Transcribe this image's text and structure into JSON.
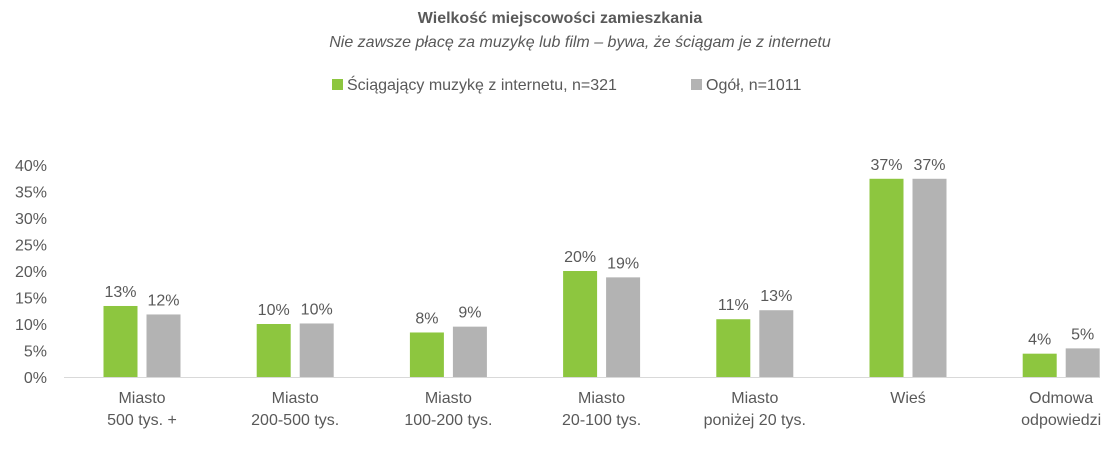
{
  "chart_data": {
    "type": "bar",
    "title": "Wielkość miejscowości zamieszkania",
    "subtitle": "Nie zawsze płacę za muzykę lub film – bywa, że ściągam je z internetu",
    "categories": [
      [
        "Miasto",
        "500 tys. +"
      ],
      [
        "Miasto",
        "200-500 tys."
      ],
      [
        "Miasto",
        "100-200 tys."
      ],
      [
        "Miasto",
        "20-100 tys."
      ],
      [
        "Miasto",
        "poniżej 20 tys."
      ],
      [
        "Wieś"
      ],
      [
        "Odmowa",
        "odpowiedzi"
      ]
    ],
    "series": [
      {
        "name": "Ściągający muzykę z internetu, n=321",
        "color": "#8dc63f",
        "values": [
          13,
          10,
          8,
          20,
          11,
          37,
          4
        ],
        "labels": [
          "13%",
          "10%",
          "8%",
          "20%",
          "11%",
          "37%",
          "4%"
        ]
      },
      {
        "name": "Ogół, n=1011",
        "color": "#b3b3b3",
        "values": [
          12,
          10,
          9,
          19,
          13,
          37,
          5
        ],
        "labels": [
          "12%",
          "10%",
          "9%",
          "19%",
          "13%",
          "37%",
          "5%"
        ]
      }
    ],
    "heights": [
      [
        13.4,
        10,
        8.4,
        20,
        10.9,
        37.4,
        4.4
      ],
      [
        11.8,
        10.1,
        9.5,
        18.8,
        12.6,
        37.4,
        5.4
      ]
    ],
    "yticks": [
      "0%",
      "5%",
      "10%",
      "15%",
      "20%",
      "25%",
      "30%",
      "35%",
      "40%"
    ],
    "ylim": [
      0,
      40
    ],
    "legend_position": "top-center",
    "grid": false,
    "xlabel": "",
    "ylabel": ""
  }
}
